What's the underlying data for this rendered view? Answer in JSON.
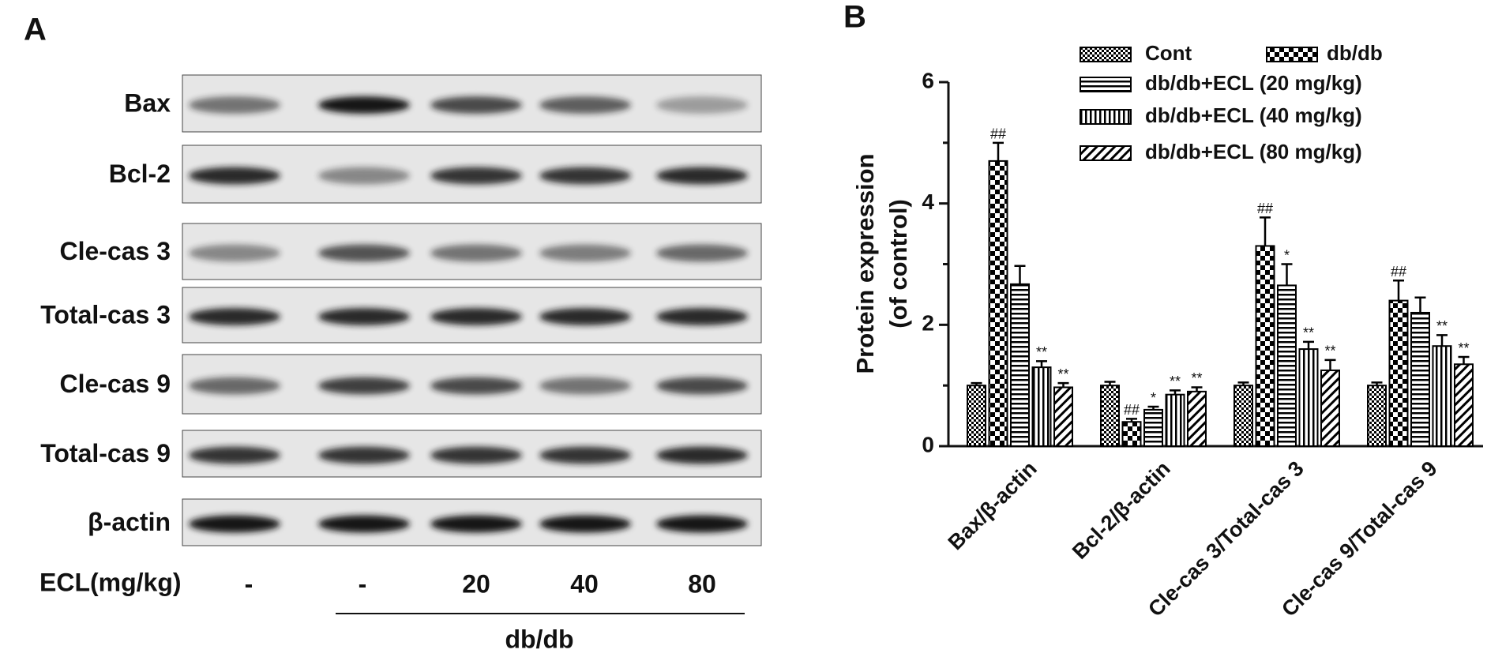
{
  "panel_a": {
    "label": "A",
    "rows": [
      "Bax",
      "Bcl-2",
      "Cle-cas 3",
      "Total-cas 3",
      "Cle-cas 9",
      "Total-cas 9",
      "β-actin"
    ],
    "treatment_label": "ECL(mg/kg)",
    "lanes": [
      "-",
      "-",
      "20",
      "40",
      "80"
    ],
    "group_label": "db/db"
  },
  "chart_data": {
    "type": "bar",
    "panel_label": "B",
    "ylabel": [
      "Protein expression",
      "(of control)"
    ],
    "categories": [
      "Bax/β-actin",
      "Bcl-2/β-actin",
      "Cle-cas 3/Total-cas 3",
      "Cle-cas 9/Total-cas 9"
    ],
    "ylim": [
      0,
      6
    ],
    "yticks": [
      0,
      2,
      4,
      6
    ],
    "yminorticks": [
      1,
      3,
      5
    ],
    "series": [
      {
        "name": "Cont",
        "color": "#000000",
        "pattern": "fine-check",
        "values": [
          1.0,
          1.0,
          1.0,
          1.0
        ],
        "errors": [
          0.04,
          0.06,
          0.05,
          0.05
        ]
      },
      {
        "name": "db/db",
        "color": "#000000",
        "pattern": "checker",
        "values": [
          4.7,
          0.4,
          3.3,
          2.4
        ],
        "errors": [
          0.3,
          0.05,
          0.47,
          0.33
        ],
        "significance": [
          "##",
          "##",
          "##",
          "##"
        ]
      },
      {
        "name": "db/db+ECL (20 mg/kg)",
        "color": "#000000",
        "pattern": "h-stripes",
        "values": [
          2.67,
          0.6,
          2.65,
          2.2
        ],
        "errors": [
          0.3,
          0.05,
          0.35,
          0.25
        ],
        "significance": [
          null,
          "*",
          "*",
          null
        ]
      },
      {
        "name": "db/db+ECL (40 mg/kg)",
        "color": "#000000",
        "pattern": "v-stripes",
        "values": [
          1.3,
          0.85,
          1.6,
          1.65
        ],
        "errors": [
          0.1,
          0.07,
          0.12,
          0.18
        ],
        "significance": [
          "**",
          "**",
          "**",
          "**"
        ]
      },
      {
        "name": "db/db+ECL (80 mg/kg)",
        "color": "#000000",
        "pattern": "diagonal",
        "values": [
          0.97,
          0.9,
          1.25,
          1.35
        ],
        "errors": [
          0.07,
          0.07,
          0.17,
          0.12
        ],
        "significance": [
          "**",
          "**",
          "**",
          "**"
        ]
      }
    ]
  }
}
